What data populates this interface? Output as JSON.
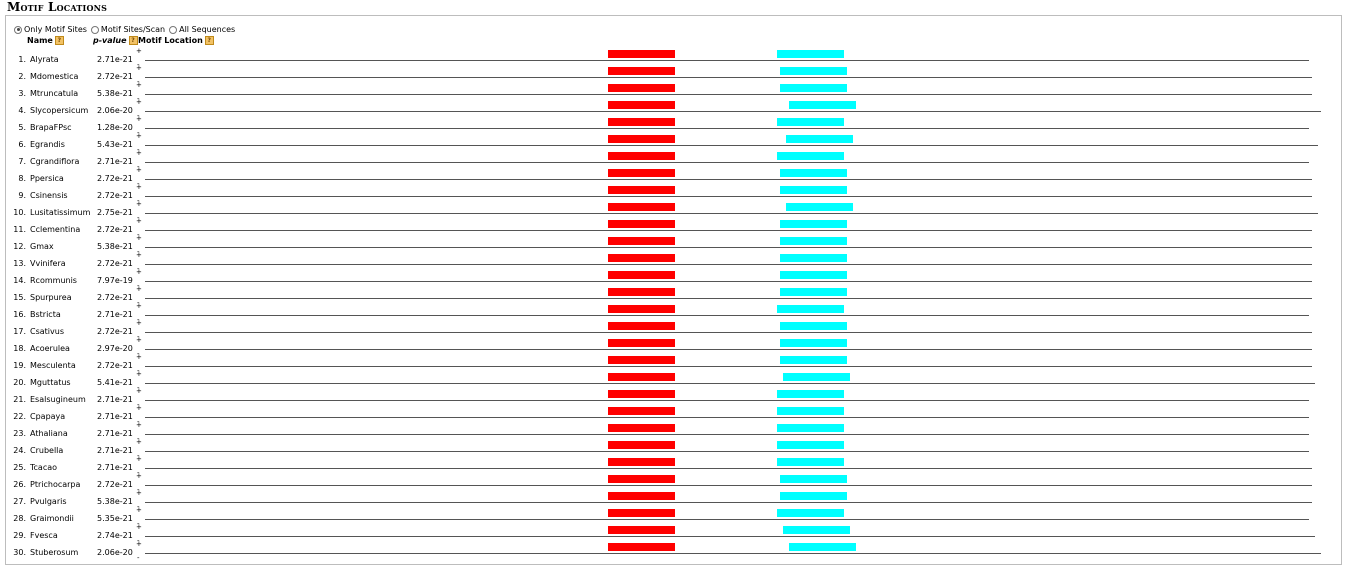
{
  "title": "Motif Locations",
  "modes": [
    {
      "label": "Only Motif Sites",
      "checked": true
    },
    {
      "label": "Motif Sites/Scan",
      "checked": false
    },
    {
      "label": "All Sequences",
      "checked": false
    }
  ],
  "headers": {
    "name": "Name",
    "pvalue": "p-value",
    "location": "Motif Location",
    "help": "?"
  },
  "strand": {
    "plus": "+",
    "minus": "-"
  },
  "colors": {
    "motif1": "#ff0000",
    "motif2": "#00ffff"
  },
  "sequences": [
    {
      "num": "1.",
      "name": "Alyrata",
      "pvalue": "2.71e-21",
      "len": 1164,
      "m2": 632
    },
    {
      "num": "2.",
      "name": "Mdomestica",
      "pvalue": "2.72e-21",
      "len": 1167,
      "m2": 635
    },
    {
      "num": "3.",
      "name": "Mtruncatula",
      "pvalue": "5.38e-21",
      "len": 1167,
      "m2": 635
    },
    {
      "num": "4.",
      "name": "Slycopersicum",
      "pvalue": "2.06e-20",
      "len": 1176,
      "m2": 644
    },
    {
      "num": "5.",
      "name": "BrapaFPsc",
      "pvalue": "1.28e-20",
      "len": 1164,
      "m2": 632
    },
    {
      "num": "6.",
      "name": "Egrandis",
      "pvalue": "5.43e-21",
      "len": 1173,
      "m2": 641
    },
    {
      "num": "7.",
      "name": "Cgrandiflora",
      "pvalue": "2.71e-21",
      "len": 1164,
      "m2": 632
    },
    {
      "num": "8.",
      "name": "Ppersica",
      "pvalue": "2.72e-21",
      "len": 1167,
      "m2": 635
    },
    {
      "num": "9.",
      "name": "Csinensis",
      "pvalue": "2.72e-21",
      "len": 1167,
      "m2": 635
    },
    {
      "num": "10.",
      "name": "Lusitatissimum",
      "pvalue": "2.75e-21",
      "len": 1173,
      "m2": 641
    },
    {
      "num": "11.",
      "name": "Cclementina",
      "pvalue": "2.72e-21",
      "len": 1167,
      "m2": 635
    },
    {
      "num": "12.",
      "name": "Gmax",
      "pvalue": "5.38e-21",
      "len": 1167,
      "m2": 635
    },
    {
      "num": "13.",
      "name": "Vvinifera",
      "pvalue": "2.72e-21",
      "len": 1167,
      "m2": 635
    },
    {
      "num": "14.",
      "name": "Rcommunis",
      "pvalue": "7.97e-19",
      "len": 1167,
      "m2": 635
    },
    {
      "num": "15.",
      "name": "Spurpurea",
      "pvalue": "2.72e-21",
      "len": 1167,
      "m2": 635
    },
    {
      "num": "16.",
      "name": "Bstricta",
      "pvalue": "2.71e-21",
      "len": 1164,
      "m2": 632
    },
    {
      "num": "17.",
      "name": "Csativus",
      "pvalue": "2.72e-21",
      "len": 1167,
      "m2": 635
    },
    {
      "num": "18.",
      "name": "Acoerulea",
      "pvalue": "2.97e-20",
      "len": 1167,
      "m2": 635
    },
    {
      "num": "19.",
      "name": "Mesculenta",
      "pvalue": "2.72e-21",
      "len": 1167,
      "m2": 635
    },
    {
      "num": "20.",
      "name": "Mguttatus",
      "pvalue": "5.41e-21",
      "len": 1170,
      "m2": 638
    },
    {
      "num": "21.",
      "name": "Esalsugineum",
      "pvalue": "2.71e-21",
      "len": 1164,
      "m2": 632
    },
    {
      "num": "22.",
      "name": "Cpapaya",
      "pvalue": "2.71e-21",
      "len": 1164,
      "m2": 632
    },
    {
      "num": "23.",
      "name": "Athaliana",
      "pvalue": "2.71e-21",
      "len": 1164,
      "m2": 632
    },
    {
      "num": "24.",
      "name": "Crubella",
      "pvalue": "2.71e-21",
      "len": 1164,
      "m2": 632
    },
    {
      "num": "25.",
      "name": "Tcacao",
      "pvalue": "2.71e-21",
      "len": 1167,
      "m2": 632
    },
    {
      "num": "26.",
      "name": "Ptrichocarpa",
      "pvalue": "2.72e-21",
      "len": 1167,
      "m2": 635
    },
    {
      "num": "27.",
      "name": "Pvulgaris",
      "pvalue": "5.38e-21",
      "len": 1167,
      "m2": 635
    },
    {
      "num": "28.",
      "name": "Graimondii",
      "pvalue": "5.35e-21",
      "len": 1164,
      "m2": 632
    },
    {
      "num": "29.",
      "name": "Fvesca",
      "pvalue": "2.74e-21",
      "len": 1170,
      "m2": 638
    },
    {
      "num": "30.",
      "name": "Stuberosum",
      "pvalue": "2.06e-20",
      "len": 1176,
      "m2": 644
    }
  ]
}
